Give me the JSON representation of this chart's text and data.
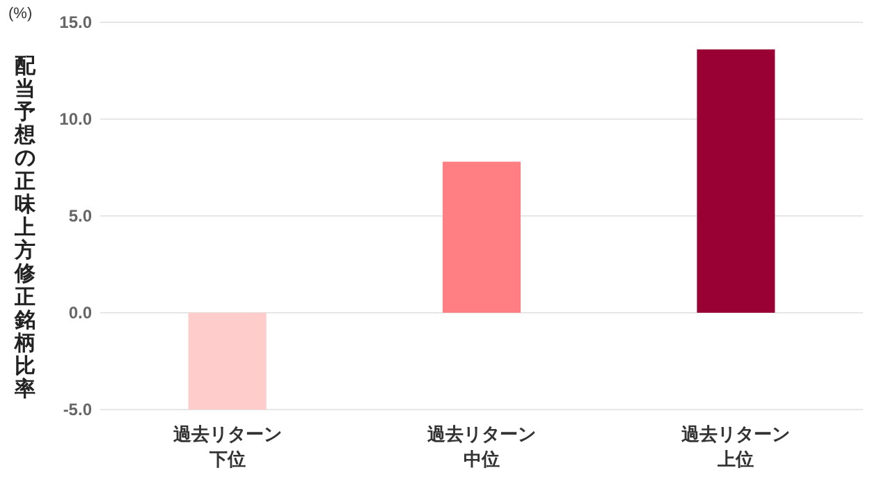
{
  "chart_data": {
    "type": "bar",
    "ylabel": "配当予想の正味上方修正銘柄比率",
    "annotations": [
      "(%)"
    ],
    "categories": [
      "過去リターン下位",
      "過去リターン中位",
      "過去リターン上位"
    ],
    "values": [
      -5.0,
      7.8,
      13.6
    ],
    "colors": [
      "#ffcccc",
      "#ff7f82",
      "#990033"
    ],
    "ylim": [
      -5,
      15
    ],
    "yticks": [
      {
        "value": -5,
        "label": "-5.0"
      },
      {
        "value": 0,
        "label": "0.0"
      },
      {
        "value": 5,
        "label": "5.0"
      },
      {
        "value": 10,
        "label": "10.0"
      },
      {
        "value": 15,
        "label": "15.0"
      }
    ],
    "grid": "y"
  }
}
